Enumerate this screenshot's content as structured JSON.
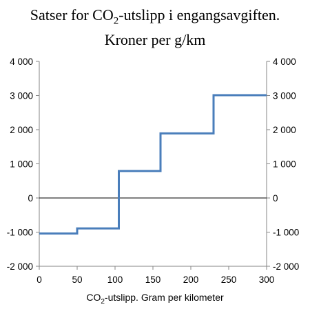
{
  "chart_data": {
    "type": "line",
    "title_line1_pre": "Satser for CO",
    "title_line1_sub": "2",
    "title_line1_post": "-utslipp i engangsavgiften.",
    "title_line2": "Kroner per g/km",
    "xlabel_pre": "CO",
    "xlabel_sub": "2",
    "xlabel_post": "-utslipp. Gram per kilometer",
    "xlim": [
      0,
      300
    ],
    "ylim": [
      -2000,
      4000
    ],
    "xticks": [
      0,
      50,
      100,
      150,
      200,
      250,
      300
    ],
    "xtick_labels": [
      "0",
      "50",
      "100",
      "150",
      "200",
      "250",
      "300"
    ],
    "yticks": [
      -2000,
      -1000,
      0,
      1000,
      2000,
      3000,
      4000
    ],
    "ytick_labels": [
      "-2 000",
      "-1 000",
      "0",
      "1 000",
      "2 000",
      "3 000",
      "4 000"
    ],
    "grid": false,
    "series_color": "#4a7ebb",
    "series": [
      {
        "x": [
          0,
          50,
          50,
          105,
          105,
          160,
          160,
          230,
          230,
          300
        ],
        "y": [
          -1040,
          -1040,
          -890,
          -890,
          790,
          790,
          1890,
          1890,
          3010,
          3010
        ]
      }
    ]
  }
}
